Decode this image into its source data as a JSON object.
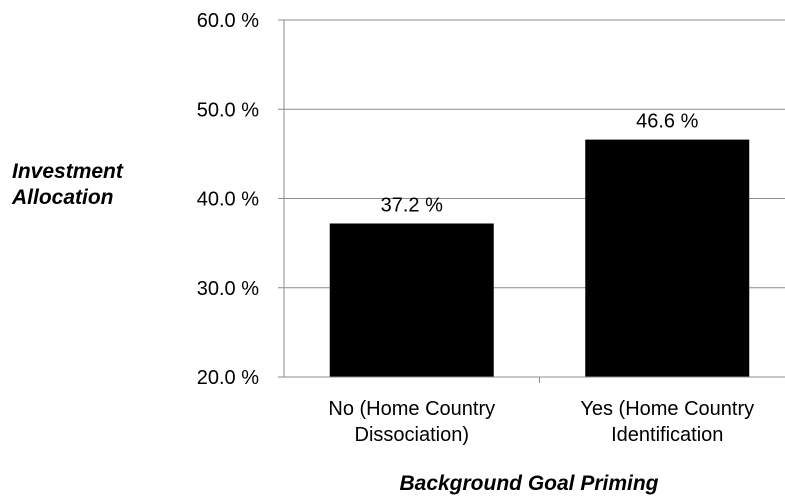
{
  "chart_data": {
    "type": "bar",
    "categories": [
      [
        "No (Home Country",
        "Dissociation)"
      ],
      [
        "Yes (Home Country",
        "Identification"
      ]
    ],
    "values": [
      37.2,
      46.6
    ],
    "data_labels": [
      "37.2 %",
      "46.6 %"
    ],
    "yticks": [
      20.0,
      30.0,
      40.0,
      50.0,
      60.0
    ],
    "ytick_labels": [
      "20.0 %",
      "30.0 %",
      "40.0 %",
      "50.0 %",
      "60.0 %"
    ],
    "ylim": [
      20,
      60
    ],
    "ylabel": [
      "Investment",
      "Allocation"
    ],
    "xlabel": "Background Goal Priming",
    "grid": true,
    "bar_color": "#000000",
    "grid_color": "#8c8c8c"
  }
}
